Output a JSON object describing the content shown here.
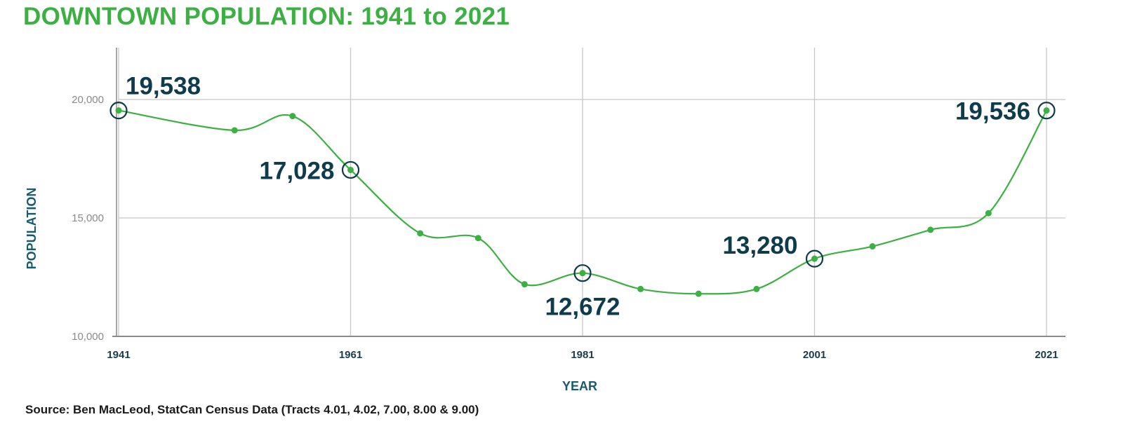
{
  "chart_data": {
    "type": "line",
    "title": "DOWNTOWN POPULATION: 1941 to 2021",
    "xlabel": "YEAR",
    "ylabel": "POPULATION",
    "source": "Source: Ben MacLeod, StatCan Census Data (Tracts 4.01, 4.02, 7.00, 8.00 & 9.00)",
    "xlim": [
      1941,
      2021
    ],
    "ylim": [
      10000,
      20000
    ],
    "x_ticks": [
      1941,
      1961,
      1981,
      2001,
      2021
    ],
    "x_tick_labels": [
      "1941",
      "1961",
      "1981",
      "2001",
      "2021"
    ],
    "y_ticks": [
      10000,
      15000,
      20000
    ],
    "y_tick_labels": [
      "10,000",
      "15,000",
      "20,000"
    ],
    "grid": true,
    "line_color": "#3cb043",
    "marker_color": "#3cb043",
    "highlight_color": "#0f3b4a",
    "series": [
      {
        "x": [
          1941,
          1951,
          1956,
          1961,
          1967,
          1972,
          1976,
          1981,
          1986,
          1991,
          1996,
          2001,
          2006,
          2011,
          2016,
          2021
        ],
        "values": [
          19538,
          18700,
          19300,
          17028,
          14350,
          14150,
          12200,
          12672,
          12000,
          11800,
          12000,
          13280,
          13800,
          14500,
          15200,
          19536
        ]
      }
    ],
    "annotations": [
      {
        "x": 1941,
        "y": 19538,
        "text": "19,538",
        "anchor": "start",
        "placement": "above-right"
      },
      {
        "x": 1961,
        "y": 17028,
        "text": "17,028",
        "anchor": "end",
        "placement": "left"
      },
      {
        "x": 1981,
        "y": 12672,
        "text": "12,672",
        "anchor": "middle",
        "placement": "below"
      },
      {
        "x": 2001,
        "y": 13280,
        "text": "13,280",
        "anchor": "end",
        "placement": "above-left"
      },
      {
        "x": 2021,
        "y": 19536,
        "text": "19,536",
        "anchor": "end",
        "placement": "left"
      }
    ]
  }
}
